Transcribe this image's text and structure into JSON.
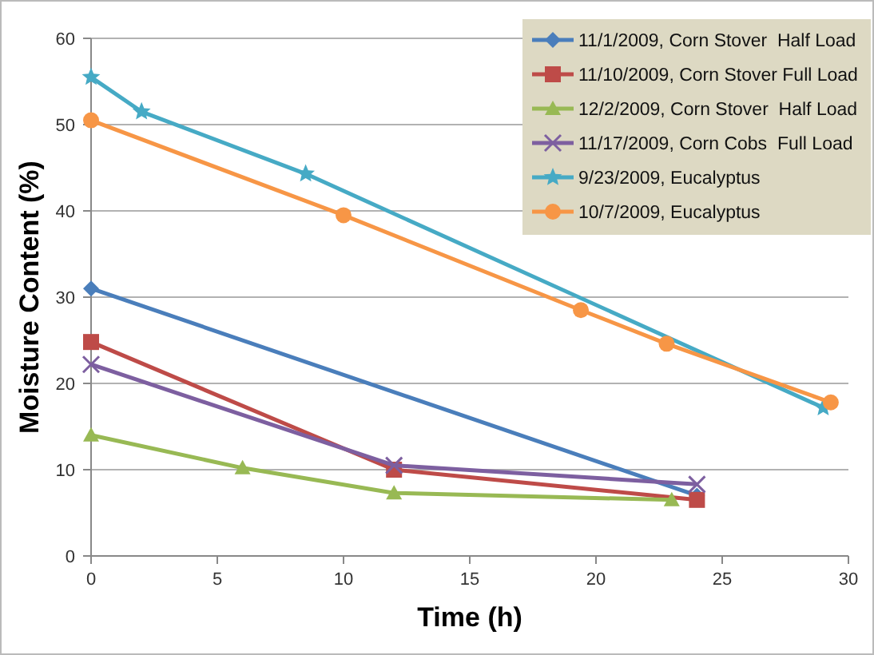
{
  "chart_data": {
    "type": "line",
    "xlabel": "Time (h)",
    "ylabel": "Moisture Content (%)",
    "xlim": [
      0,
      30
    ],
    "xticks": [
      0,
      5,
      10,
      15,
      20,
      25,
      30
    ],
    "ylim": [
      0,
      60
    ],
    "yticks": [
      0,
      10,
      20,
      30,
      40,
      50,
      60
    ],
    "grid": "y",
    "legend": "top right",
    "line_style": "solid",
    "series": [
      {
        "name": "11/1/2009, Corn Stover  Half Load",
        "color": "#4a7ebb",
        "marker": "diamond",
        "x": [
          0,
          24
        ],
        "values": [
          31,
          7
        ]
      },
      {
        "name": "11/10/2009, Corn Stover Full Load",
        "color": "#be4b48",
        "marker": "square",
        "x": [
          0,
          12,
          24
        ],
        "values": [
          24.8,
          10,
          6.5
        ]
      },
      {
        "name": "12/2/2009, Corn Stover  Half Load",
        "color": "#98b954",
        "marker": "triangle",
        "x": [
          0,
          6,
          12,
          23
        ],
        "values": [
          14,
          10.2,
          7.3,
          6.5
        ]
      },
      {
        "name": "11/17/2009, Corn Cobs  Full Load",
        "color": "#7d5fa0",
        "marker": "cross",
        "x": [
          0,
          12,
          24
        ],
        "values": [
          22.2,
          10.5,
          8.3
        ]
      },
      {
        "name": "9/23/2009, Eucalyptus",
        "color": "#46aac5",
        "marker": "star",
        "x": [
          0,
          2,
          8.5,
          29
        ],
        "values": [
          55.5,
          51.5,
          44.3,
          17.2
        ]
      },
      {
        "name": "10/7/2009, Eucalyptus",
        "color": "#f79646",
        "marker": "circle",
        "x": [
          0,
          10,
          19.4,
          22.8,
          29.3
        ],
        "values": [
          50.5,
          39.5,
          28.5,
          24.6,
          17.8
        ]
      }
    ]
  }
}
